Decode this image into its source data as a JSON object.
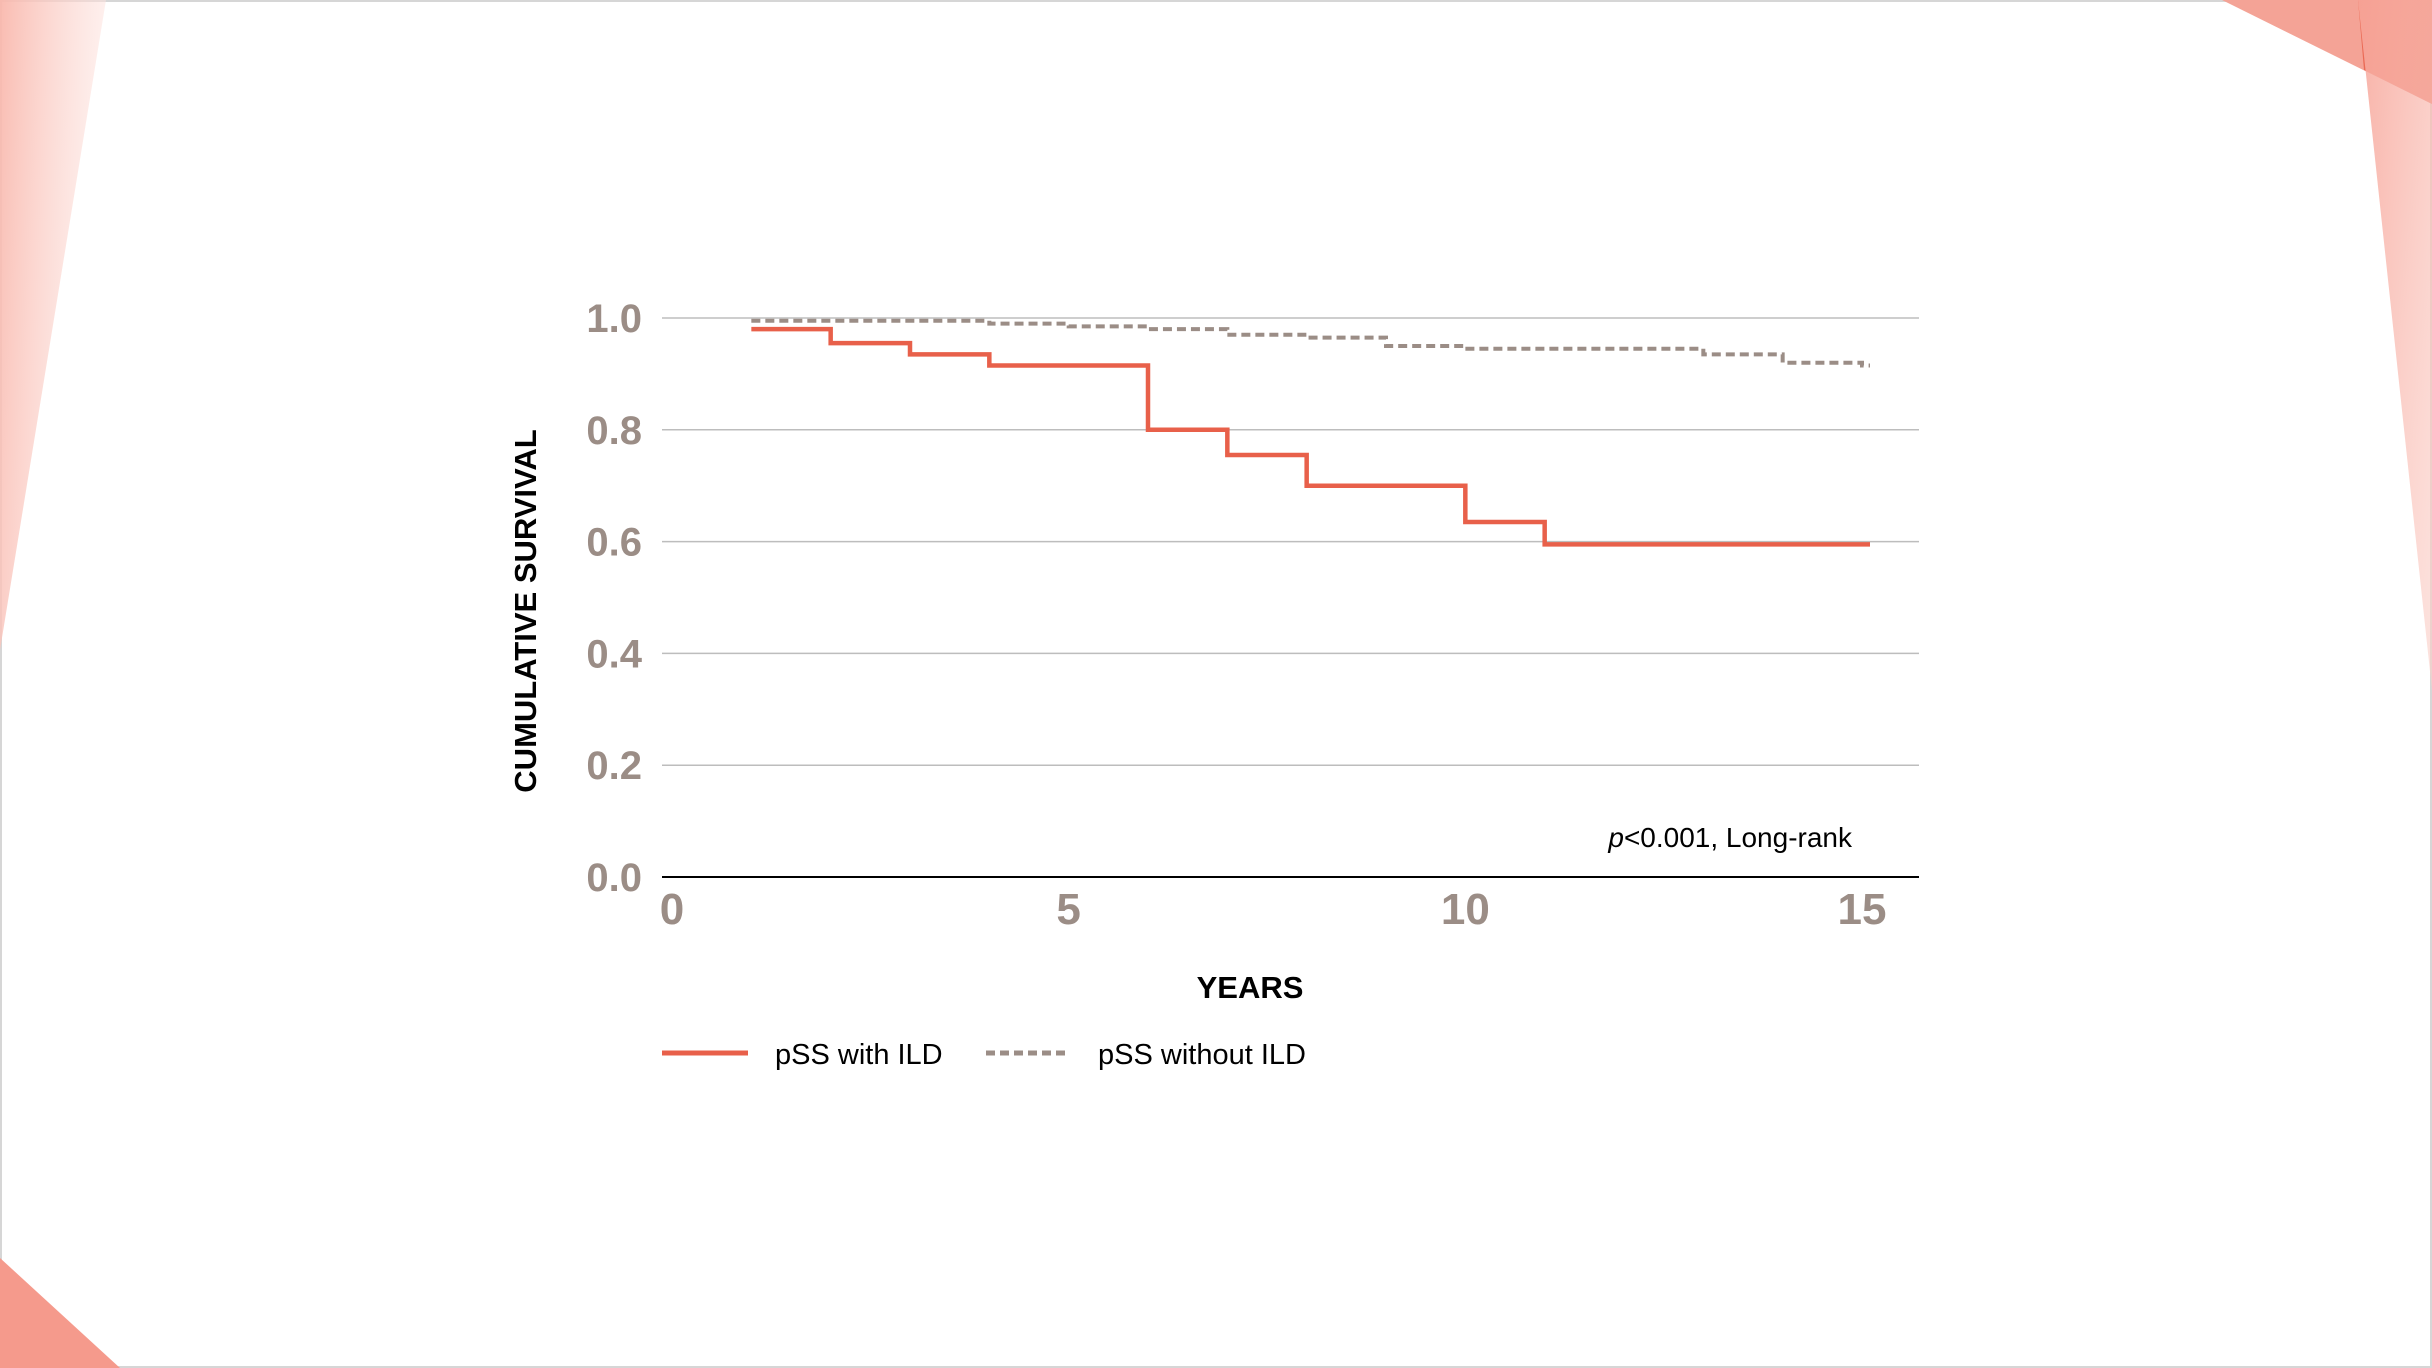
{
  "colors": {
    "with_ild": "#e8604a",
    "without_ild": "#9b8d86",
    "tick_label": "#9b8d86",
    "grid": "#bdbdbd",
    "decoration_light": "#f8c4bb",
    "decoration_dark": "#e8604a"
  },
  "chart_data": {
    "type": "line",
    "subtype": "step",
    "xlabel": "YEARS",
    "ylabel": "CUMULATIVE SURVIVAL",
    "xlim": [
      0,
      15.7
    ],
    "ylim": [
      0,
      1.0
    ],
    "x_ticks": [
      0,
      5,
      10,
      15
    ],
    "y_ticks": [
      0.0,
      0.2,
      0.4,
      0.6,
      0.8,
      1.0
    ],
    "y_tick_labels": [
      "0.0",
      "0.2",
      "0.4",
      "0.6",
      "0.8",
      "1.0"
    ],
    "grid": "horizontal",
    "legend_position": "bottom-left",
    "annotation": {
      "p_symbol": "p",
      "rest": "<0.001, Long-rank",
      "position": "bottom-right"
    },
    "series": [
      {
        "name": "pSS with ILD",
        "style": "solid",
        "color": "#e8604a",
        "x": [
          1,
          2,
          3,
          4,
          6,
          7,
          8,
          10,
          11,
          15
        ],
        "y": [
          0.98,
          0.955,
          0.935,
          0.915,
          0.8,
          0.755,
          0.7,
          0.635,
          0.595,
          0.595
        ]
      },
      {
        "name": "pSS without ILD",
        "style": "dashed",
        "color": "#9b8d86",
        "x": [
          1,
          4,
          5,
          6,
          7,
          8,
          9,
          10,
          13,
          14,
          15
        ],
        "y": [
          0.995,
          0.99,
          0.985,
          0.98,
          0.97,
          0.965,
          0.95,
          0.945,
          0.935,
          0.92,
          0.915
        ]
      }
    ]
  }
}
